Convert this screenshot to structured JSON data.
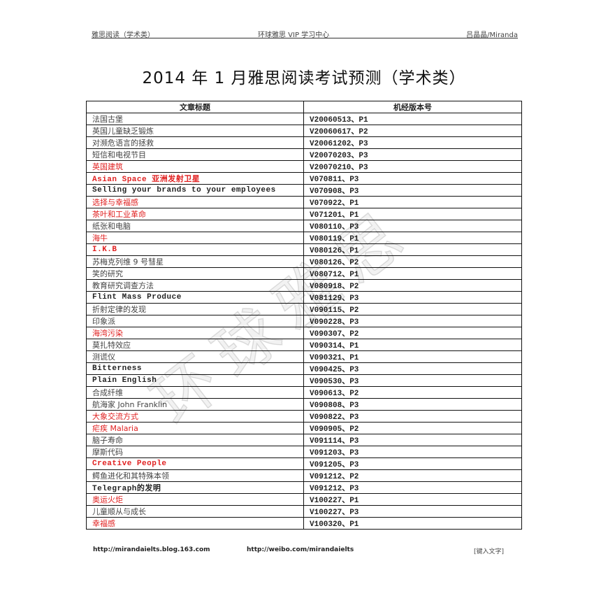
{
  "header": {
    "left": "雅思阅读（学术类）",
    "center": "环球雅思 VIP 学习中心",
    "right": "吕晶晶/Miranda"
  },
  "title": "2014 年 1 月雅思阅读考试预测（学术类）",
  "watermark": "环球雅思",
  "table": {
    "columns": [
      "文章标题",
      "机经版本号"
    ],
    "highlight_color": "#e02020",
    "rows": [
      {
        "title": "法国古堡",
        "version": "V20060513、P1",
        "red": false
      },
      {
        "title": "英国儿童缺乏锻炼",
        "version": "V20060617、P2",
        "red": false
      },
      {
        "title": "对濒危语言的拯救",
        "version": "V20061202、P3",
        "red": false
      },
      {
        "title": "短信和电视节目",
        "version": "V20070203、P3",
        "red": false
      },
      {
        "title": "英国建筑",
        "version": "V20070210、P3",
        "red": true
      },
      {
        "title": "Asian Space 亚洲发射卫星",
        "version": "V070811、P3",
        "red": true
      },
      {
        "title": "Selling your brands to your employees",
        "version": "V070908、P3",
        "red": false
      },
      {
        "title": "选择与幸福感",
        "version": "V070922、P1",
        "red": true
      },
      {
        "title": "茶叶和工业革命",
        "version": "V071201、P1",
        "red": true
      },
      {
        "title": "纸张和电脑",
        "version": "V080110、P3",
        "red": false
      },
      {
        "title": "海牛",
        "version": "V080119、P1",
        "red": true
      },
      {
        "title": "I.K.B",
        "version": "V080126、P1",
        "red": true
      },
      {
        "title": "苏梅克列维 9 号彗星",
        "version": "V080126、P2",
        "red": false
      },
      {
        "title": "笑的研究",
        "version": "V080712、P1",
        "red": false
      },
      {
        "title": "教育研究调查方法",
        "version": "V080918、P2",
        "red": false
      },
      {
        "title": "Flint Mass Produce",
        "version": "V081129、P3",
        "red": false
      },
      {
        "title": "折射定律的发现",
        "version": "V090115、P2",
        "red": false
      },
      {
        "title": "印象派",
        "version": "V090228、P3",
        "red": false
      },
      {
        "title": "海湾污染",
        "version": "V090307、P2",
        "red": true
      },
      {
        "title": "莫扎特效应",
        "version": "V090314、P1",
        "red": false
      },
      {
        "title": "测谎仪",
        "version": "V090321、P1",
        "red": false
      },
      {
        "title": "Bitterness",
        "version": "V090425、P3",
        "red": false
      },
      {
        "title": "Plain English",
        "version": "V090530、P3",
        "red": false
      },
      {
        "title": "合成纤维",
        "version": "V090613、P2",
        "red": false
      },
      {
        "title": "航海家 John Franklin",
        "version": "V090808、P3",
        "red": false
      },
      {
        "title": "大象交流方式",
        "version": "V090822、P3",
        "red": true
      },
      {
        "title": "疟疾 Malaria",
        "version": "V090905、P2",
        "red": true
      },
      {
        "title": "脑子寿命",
        "version": "V091114、P3",
        "red": false
      },
      {
        "title": "摩斯代码",
        "version": "V091203、P3",
        "red": false
      },
      {
        "title": "Creative People",
        "version": "V091205、P3",
        "red": true
      },
      {
        "title": "鳄鱼进化和其特殊本领",
        "version": "V091212、P2",
        "red": false
      },
      {
        "title": "Telegraph的发明",
        "version": "V091212、P3",
        "red": false
      },
      {
        "title": "奥运火炬",
        "version": "V100227、P1",
        "red": true
      },
      {
        "title": "儿童顺从与成长",
        "version": "V100227、P3",
        "red": false
      },
      {
        "title": "幸福感",
        "version": "V100320、P1",
        "red": true
      }
    ]
  },
  "footer": {
    "blog": "http://mirandaielts.blog.163.com",
    "weibo": "http://weibo.com/mirandaielts",
    "placeholder": "[键入文字]"
  }
}
